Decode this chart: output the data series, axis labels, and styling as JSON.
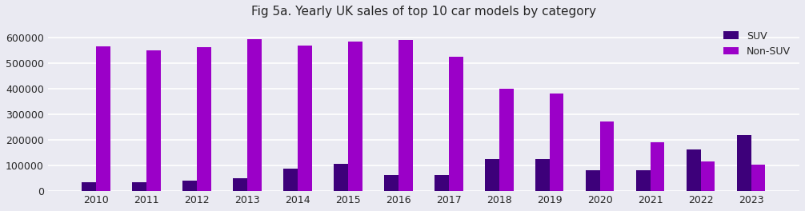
{
  "title": "Fig 5a. Yearly UK sales of top 10 car models by category",
  "years": [
    2010,
    2011,
    2012,
    2013,
    2014,
    2015,
    2016,
    2017,
    2018,
    2019,
    2020,
    2021,
    2022,
    2023
  ],
  "suv_values": [
    35000,
    35000,
    42000,
    50000,
    88000,
    105000,
    62000,
    62000,
    125000,
    125000,
    82000,
    82000,
    162000,
    220000
  ],
  "nonsuv_values": [
    563000,
    548000,
    560000,
    592000,
    568000,
    583000,
    590000,
    523000,
    398000,
    380000,
    272000,
    190000,
    115000,
    102000
  ],
  "suv_color": "#3D007A",
  "nonsuv_color": "#9B00C8",
  "bar_width": 0.28,
  "ylim": [
    0,
    660000
  ],
  "yticks": [
    0,
    100000,
    200000,
    300000,
    400000,
    500000,
    600000
  ],
  "legend_labels": [
    "SUV",
    "Non-SUV"
  ],
  "background_color": "#EAEAF2",
  "grid_color": "white"
}
